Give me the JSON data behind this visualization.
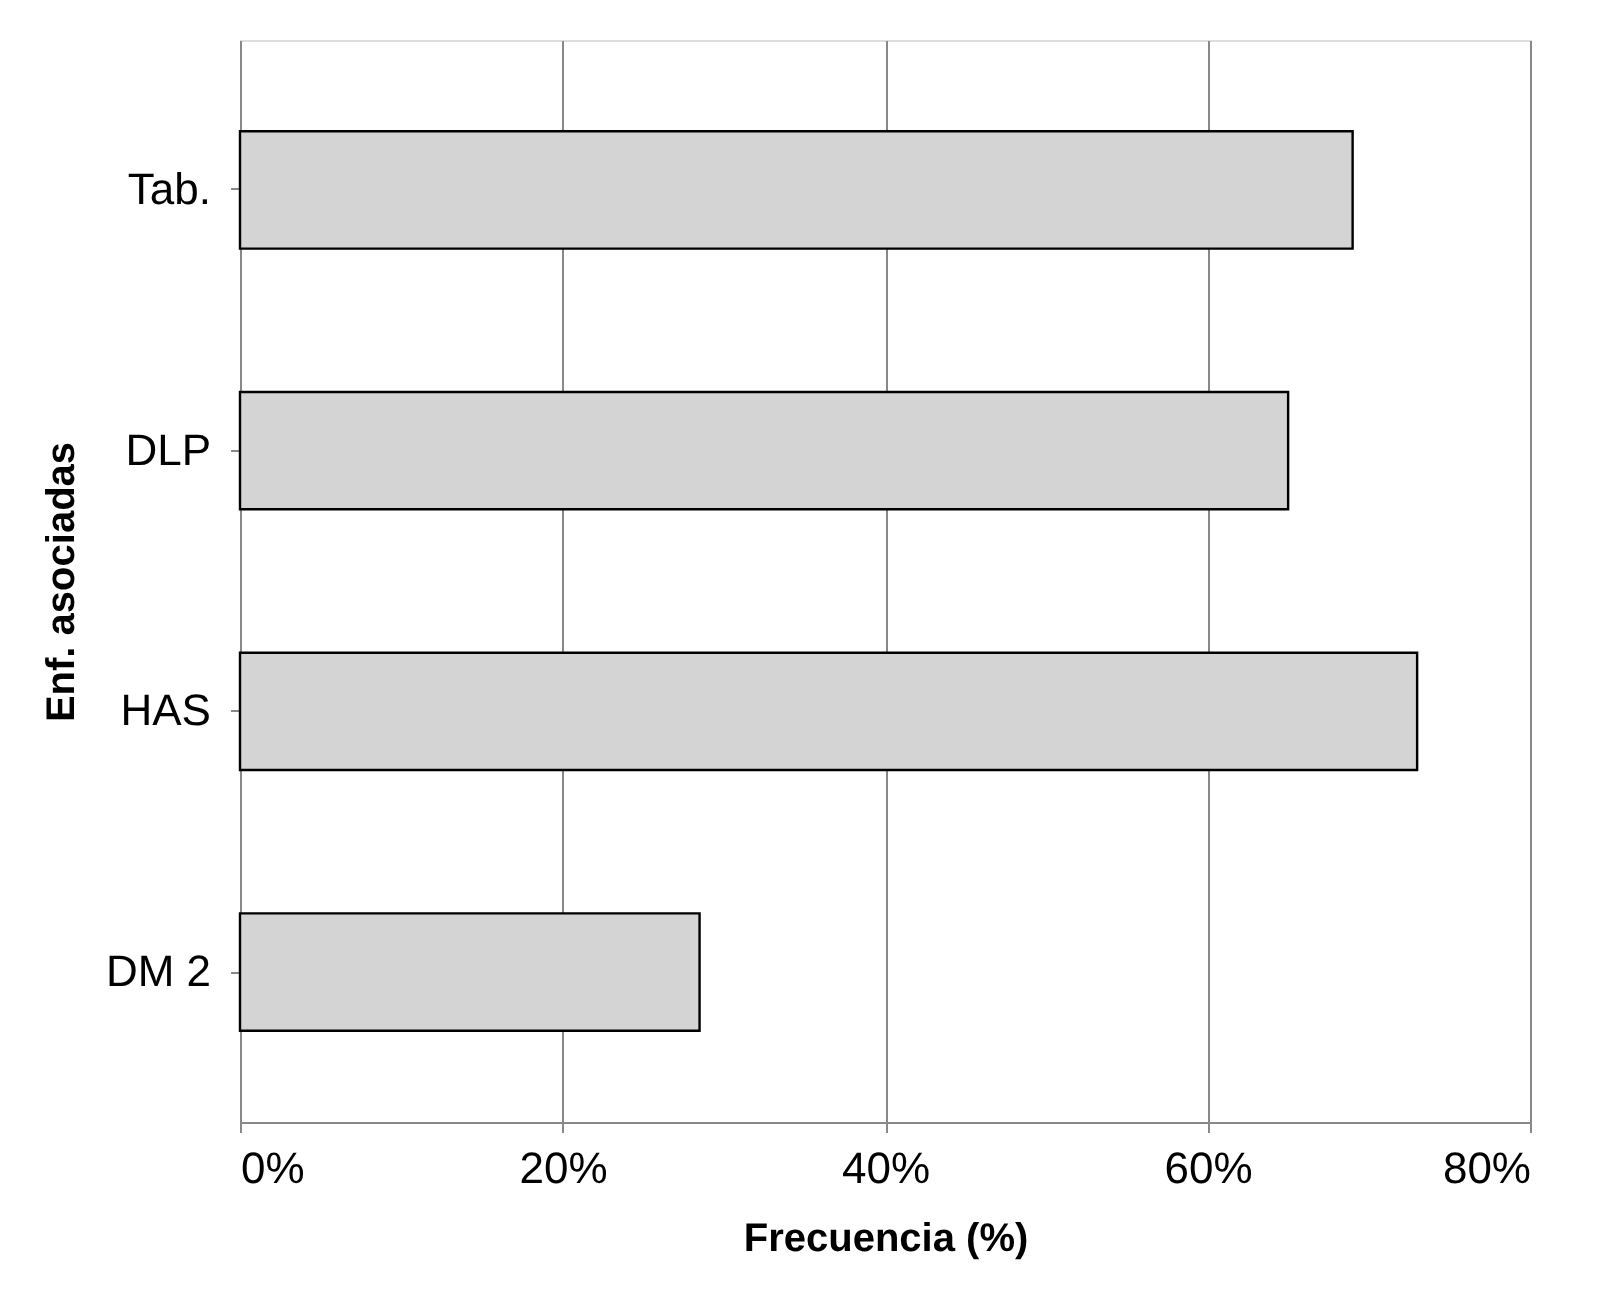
{
  "chart_data": {
    "type": "bar",
    "orientation": "horizontal",
    "xlabel": "Frecuencia (%)",
    "ylabel": "Enf. asociadas",
    "categories": [
      "Tab.",
      "DLP",
      "HAS",
      "DM 2"
    ],
    "values": [
      69,
      65,
      73,
      28.5
    ],
    "color": "#d4d4d4",
    "xlim": [
      0,
      80
    ],
    "xticks": [
      {
        "value": 0,
        "label": "0%"
      },
      {
        "value": 20,
        "label": "20%"
      },
      {
        "value": 40,
        "label": "40%"
      },
      {
        "value": 60,
        "label": "60%"
      },
      {
        "value": 80,
        "label": "80%"
      }
    ],
    "grid": "x"
  }
}
